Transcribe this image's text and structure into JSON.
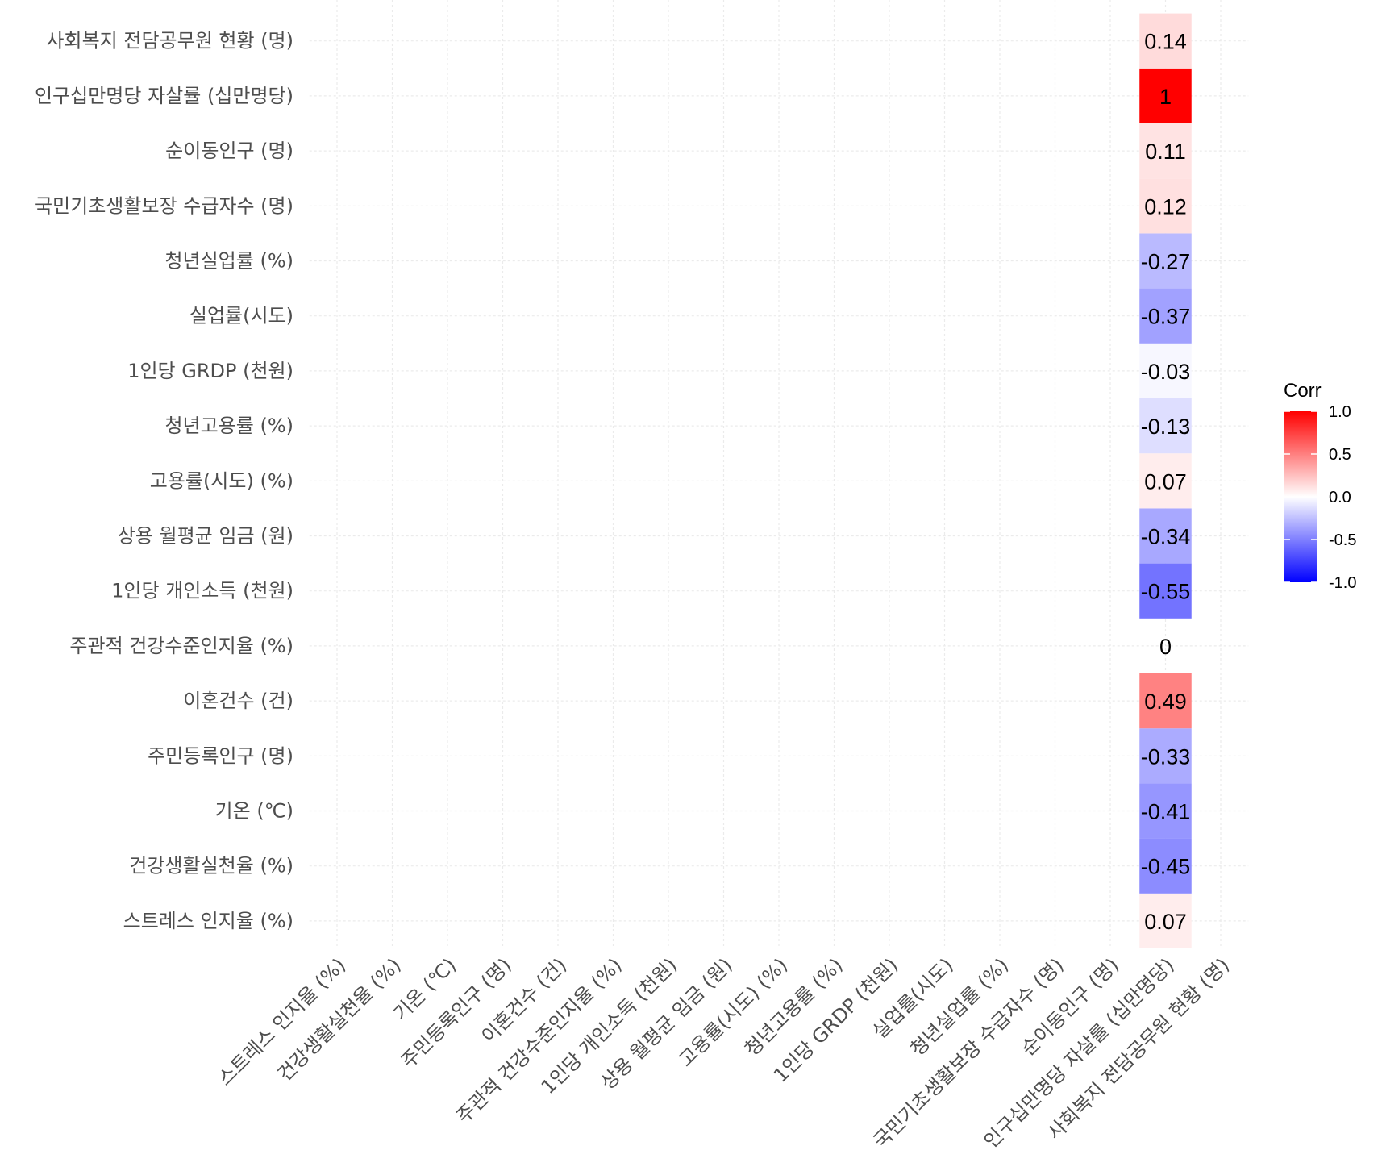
{
  "chart_data": {
    "type": "heatmap",
    "title": "",
    "xlabel": "",
    "ylabel": "",
    "x_categories": [
      "스트레스 인지율 (%)",
      "건강생활실천율 (%)",
      "기온 (℃)",
      "주민등록인구 (명)",
      "이혼건수 (건)",
      "주관적 건강수준인지율 (%)",
      "1인당 개인소득 (천원)",
      "상용 월평균 임금 (원)",
      "고용률(시도) (%)",
      "청년고용률 (%)",
      "1인당 GRDP (천원)",
      "실업률(시도)",
      "청년실업률 (%)",
      "국민기초생활보장 수급자수 (명)",
      "순이동인구 (명)",
      "인구십만명당 자살률 (십만명당)",
      "사회복지 전담공무원 현황 (명)"
    ],
    "y_categories": [
      "스트레스 인지율 (%)",
      "건강생활실천율 (%)",
      "기온 (℃)",
      "주민등록인구 (명)",
      "이혼건수 (건)",
      "주관적 건강수준인지율 (%)",
      "1인당 개인소득 (천원)",
      "상용 월평균 임금 (원)",
      "고용률(시도) (%)",
      "청년고용률 (%)",
      "1인당 GRDP (천원)",
      "실업률(시도)",
      "청년실업률 (%)",
      "국민기초생활보장 수급자수 (명)",
      "순이동인구 (명)",
      "인구십만명당 자살률 (십만명당)",
      "사회복지 전담공무원 현황 (명)"
    ],
    "filled_column": "인구십만명당 자살률 (십만명당)",
    "cells": [
      {
        "x": "인구십만명당 자살률 (십만명당)",
        "y": "스트레스 인지율 (%)",
        "value": 0.07,
        "label": "0.07"
      },
      {
        "x": "인구십만명당 자살률 (십만명당)",
        "y": "건강생활실천율 (%)",
        "value": -0.45,
        "label": "-0.45"
      },
      {
        "x": "인구십만명당 자살률 (십만명당)",
        "y": "기온 (℃)",
        "value": -0.41,
        "label": "-0.41"
      },
      {
        "x": "인구십만명당 자살률 (십만명당)",
        "y": "주민등록인구 (명)",
        "value": -0.33,
        "label": "-0.33"
      },
      {
        "x": "인구십만명당 자살률 (십만명당)",
        "y": "이혼건수 (건)",
        "value": 0.49,
        "label": "0.49"
      },
      {
        "x": "인구십만명당 자살률 (십만명당)",
        "y": "주관적 건강수준인지율 (%)",
        "value": 0,
        "label": "0"
      },
      {
        "x": "인구십만명당 자살률 (십만명당)",
        "y": "1인당 개인소득 (천원)",
        "value": -0.55,
        "label": "-0.55"
      },
      {
        "x": "인구십만명당 자살률 (십만명당)",
        "y": "상용 월평균 임금 (원)",
        "value": -0.34,
        "label": "-0.34"
      },
      {
        "x": "인구십만명당 자살률 (십만명당)",
        "y": "고용률(시도) (%)",
        "value": 0.07,
        "label": "0.07"
      },
      {
        "x": "인구십만명당 자살률 (십만명당)",
        "y": "청년고용률 (%)",
        "value": -0.13,
        "label": "-0.13"
      },
      {
        "x": "인구십만명당 자살률 (십만명당)",
        "y": "1인당 GRDP (천원)",
        "value": -0.03,
        "label": "-0.03"
      },
      {
        "x": "인구십만명당 자살률 (십만명당)",
        "y": "실업률(시도)",
        "value": -0.37,
        "label": "-0.37"
      },
      {
        "x": "인구십만명당 자살률 (십만명당)",
        "y": "청년실업률 (%)",
        "value": -0.27,
        "label": "-0.27"
      },
      {
        "x": "인구십만명당 자살률 (십만명당)",
        "y": "국민기초생활보장 수급자수 (명)",
        "value": 0.12,
        "label": "0.12"
      },
      {
        "x": "인구십만명당 자살률 (십만명당)",
        "y": "순이동인구 (명)",
        "value": 0.11,
        "label": "0.11"
      },
      {
        "x": "인구십만명당 자살률 (십만명당)",
        "y": "인구십만명당 자살률 (십만명당)",
        "value": 1,
        "label": "1"
      },
      {
        "x": "인구십만명당 자살률 (십만명당)",
        "y": "사회복지 전담공무원 현황 (명)",
        "value": 0.14,
        "label": "0.14"
      }
    ],
    "legend": {
      "title": "Corr",
      "placement": "right",
      "range": [
        -1,
        1
      ],
      "ticks": [
        "1.0",
        "0.5",
        "0.0",
        "-0.5",
        "-1.0"
      ],
      "tick_values": [
        1.0,
        0.5,
        0.0,
        -0.5,
        -1.0
      ],
      "colors": {
        "low": "#0000FF",
        "mid": "#FFFFFF",
        "high": "#FF0000"
      }
    },
    "grid": true
  }
}
